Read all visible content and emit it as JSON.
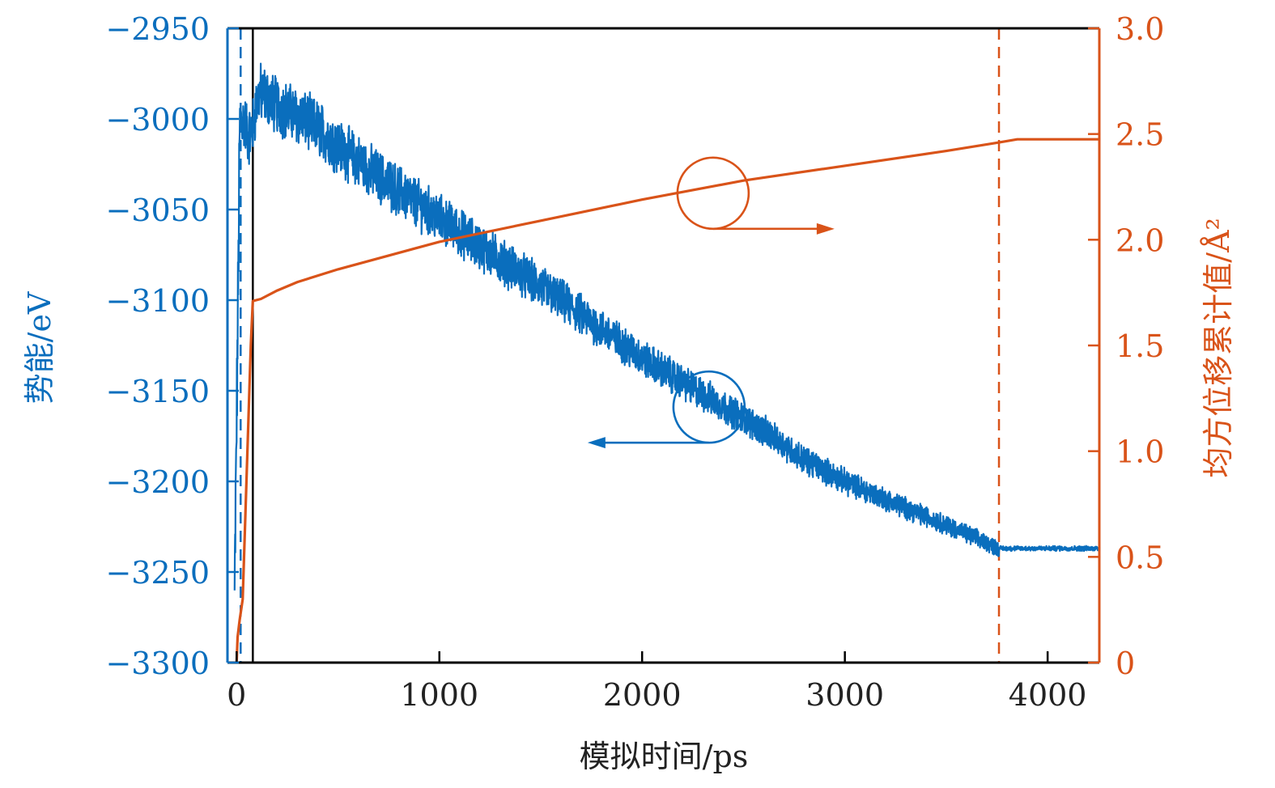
{
  "chart_data": {
    "type": "line",
    "title": "",
    "xlabel": "模拟时间/ps",
    "ylabel_left": "势能/eV",
    "ylabel_right": "均方位移累计值/Å²",
    "xlim": [
      -45,
      4255
    ],
    "ylim_left": [
      -3300,
      -2950
    ],
    "ylim_right": [
      0,
      3.0
    ],
    "x_ticks": [
      0,
      1000,
      2000,
      3000,
      4000
    ],
    "x_tick_labels": [
      "0",
      "1000",
      "2000",
      "3000",
      "4000"
    ],
    "y_left_ticks": [
      -2950,
      -3000,
      -3050,
      -3100,
      -3150,
      -3200,
      -3250,
      -3300
    ],
    "y_left_tick_labels": [
      "−2950",
      "−3000",
      "−3050",
      "−3100",
      "−3150",
      "−3200",
      "−3250",
      "−3300"
    ],
    "y_right_ticks": [
      3.0,
      2.5,
      2.0,
      1.5,
      1.0,
      0.5,
      0
    ],
    "y_right_tick_labels": [
      "3.0",
      "2.5",
      "2.0",
      "1.5",
      "1.0",
      "0.5",
      "0"
    ],
    "grid": false,
    "colors": {
      "potential": "#0a6ebd",
      "msd": "#d95319",
      "frame": "#000000"
    },
    "series": [
      {
        "name": "势能",
        "axis": "left",
        "noisy": true,
        "x": [
          -10,
          5,
          15,
          20,
          40,
          60,
          80,
          100,
          120,
          150,
          200,
          300,
          400,
          500,
          700,
          1000,
          1300,
          1600,
          2000,
          2300,
          2600,
          2800,
          3000,
          3200,
          3500,
          3760,
          4000,
          4255
        ],
        "y": [
          -3265,
          -3120,
          -3010,
          -3000,
          -3002,
          -3010,
          -3005,
          -2990,
          -2985,
          -2988,
          -2993,
          -2998,
          -3005,
          -3015,
          -3032,
          -3055,
          -3078,
          -3100,
          -3132,
          -3152,
          -3172,
          -3188,
          -3200,
          -3210,
          -3224,
          -3237,
          -3237,
          -3237
        ]
      },
      {
        "name": "均方位移累计值",
        "axis": "right",
        "noisy": false,
        "x": [
          0,
          5,
          15,
          30,
          50,
          70,
          80,
          120,
          200,
          300,
          500,
          1000,
          1500,
          2000,
          2500,
          3000,
          3500,
          3760,
          3850,
          4000,
          4255
        ],
        "y": [
          0,
          0.12,
          0.2,
          0.3,
          0.9,
          1.5,
          1.71,
          1.72,
          1.76,
          1.8,
          1.86,
          1.99,
          2.09,
          2.19,
          2.28,
          2.35,
          2.42,
          2.46,
          2.475,
          2.475,
          2.475
        ]
      }
    ],
    "vertical_lines": [
      {
        "name": "blue-dashed",
        "x": 20,
        "style": "dashed",
        "color": "#0a6ebd"
      },
      {
        "name": "black-solid",
        "x": 80,
        "style": "solid",
        "color": "#000000"
      },
      {
        "name": "orange-dashed",
        "x": 3760,
        "style": "dashed",
        "color": "#d95319"
      }
    ],
    "annotations": [
      {
        "name": "msd-circle",
        "target": "均方位移累计值",
        "x": 2350,
        "y_right": 2.22,
        "arrow": "right",
        "color": "#d95319"
      },
      {
        "name": "potential-circle",
        "target": "势能",
        "x": 2330,
        "y_left": -3159,
        "arrow": "left",
        "color": "#0a6ebd"
      }
    ]
  }
}
